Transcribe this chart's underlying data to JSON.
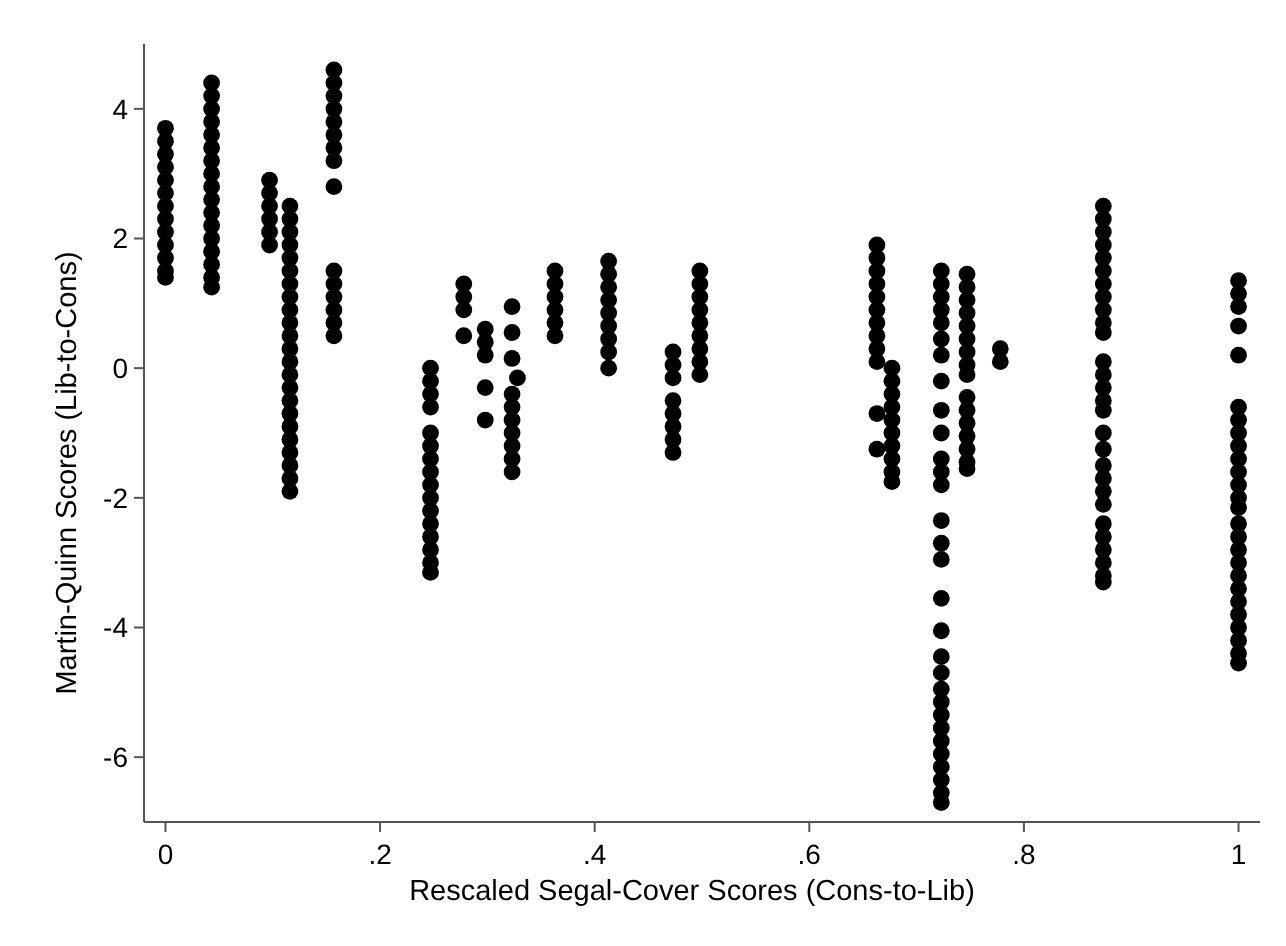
{
  "chart_data": {
    "type": "scatter",
    "xlabel": "Rescaled Segal-Cover Scores (Cons-to-Lib)",
    "ylabel": "Martin-Quinn Scores (Lib-to-Cons)",
    "xlim": [
      -0.02,
      1.02
    ],
    "ylim": [
      -7,
      5
    ],
    "xticks": [
      0,
      {
        "value": 0.2,
        "label": ".2"
      },
      {
        "value": 0.4,
        "label": ".4"
      },
      {
        "value": 0.6,
        "label": ".6"
      },
      {
        "value": 0.8,
        "label": ".8"
      },
      1
    ],
    "yticks": [
      -6,
      -4,
      -2,
      0,
      2,
      4
    ],
    "grid": false,
    "marker": "circle",
    "series": [
      {
        "color": "#000000",
        "x": [
          0,
          0,
          0,
          0,
          0,
          0,
          0,
          0,
          0,
          0,
          0,
          0,
          0,
          0.043,
          0.043,
          0.043,
          0.043,
          0.043,
          0.043,
          0.043,
          0.043,
          0.043,
          0.043,
          0.043,
          0.043,
          0.043,
          0.043,
          0.043,
          0.043,
          0.043,
          0.097,
          0.097,
          0.097,
          0.097,
          0.097,
          0.097,
          0.116,
          0.116,
          0.116,
          0.116,
          0.116,
          0.116,
          0.116,
          0.116,
          0.116,
          0.116,
          0.116,
          0.116,
          0.116,
          0.116,
          0.116,
          0.116,
          0.116,
          0.116,
          0.116,
          0.116,
          0.116,
          0.116,
          0.116,
          0.157,
          0.157,
          0.157,
          0.157,
          0.157,
          0.157,
          0.157,
          0.157,
          0.157,
          0.157,
          0.157,
          0.157,
          0.157,
          0.157,
          0.157,
          0.247,
          0.247,
          0.247,
          0.247,
          0.247,
          0.247,
          0.247,
          0.247,
          0.247,
          0.247,
          0.247,
          0.247,
          0.247,
          0.247,
          0.247,
          0.247,
          0.278,
          0.278,
          0.278,
          0.278,
          0.298,
          0.298,
          0.298,
          0.298,
          0.298,
          0.323,
          0.323,
          0.323,
          0.323,
          0.323,
          0.323,
          0.323,
          0.323,
          0.323,
          0.323,
          0.328,
          0.363,
          0.363,
          0.363,
          0.363,
          0.363,
          0.363,
          0.413,
          0.413,
          0.413,
          0.413,
          0.413,
          0.413,
          0.413,
          0.413,
          0.413,
          0.473,
          0.473,
          0.473,
          0.473,
          0.473,
          0.473,
          0.473,
          0.473,
          0.498,
          0.498,
          0.498,
          0.498,
          0.498,
          0.498,
          0.498,
          0.498,
          0.498,
          0.663,
          0.663,
          0.663,
          0.663,
          0.663,
          0.663,
          0.663,
          0.663,
          0.663,
          0.663,
          0.663,
          0.663,
          0.677,
          0.677,
          0.677,
          0.677,
          0.677,
          0.677,
          0.677,
          0.677,
          0.677,
          0.677,
          0.723,
          0.723,
          0.723,
          0.723,
          0.723,
          0.723,
          0.723,
          0.723,
          0.723,
          0.723,
          0.723,
          0.723,
          0.723,
          0.723,
          0.723,
          0.723,
          0.723,
          0.723,
          0.723,
          0.723,
          0.723,
          0.723,
          0.723,
          0.723,
          0.723,
          0.723,
          0.723,
          0.723,
          0.723,
          0.723,
          0.747,
          0.747,
          0.747,
          0.747,
          0.747,
          0.747,
          0.747,
          0.747,
          0.747,
          0.747,
          0.747,
          0.747,
          0.747,
          0.747,
          0.747,
          0.747,
          0.778,
          0.778,
          0.874,
          0.874,
          0.874,
          0.874,
          0.874,
          0.874,
          0.874,
          0.874,
          0.874,
          0.874,
          0.874,
          0.874,
          0.874,
          0.874,
          0.874,
          0.874,
          0.874,
          0.874,
          0.874,
          0.874,
          0.874,
          0.874,
          0.874,
          0.874,
          0.874,
          0.874,
          0.874,
          0.874,
          1,
          1,
          1,
          1,
          1,
          1,
          1,
          1,
          1,
          1,
          1,
          1,
          1,
          1,
          1,
          1,
          1,
          1,
          1,
          1,
          1,
          1,
          1,
          1,
          1,
          1
        ],
        "values": [
          3.7,
          3.5,
          3.3,
          3.1,
          2.9,
          2.7,
          2.5,
          2.3,
          2.1,
          1.9,
          1.7,
          1.5,
          1.4,
          4.4,
          4.2,
          4.0,
          3.8,
          3.6,
          3.4,
          3.2,
          3.0,
          2.8,
          2.6,
          2.4,
          2.2,
          2.0,
          1.8,
          1.6,
          1.4,
          1.25,
          2.9,
          2.7,
          2.5,
          2.3,
          2.1,
          1.9,
          2.5,
          2.3,
          2.1,
          1.9,
          1.7,
          1.5,
          1.3,
          1.1,
          0.9,
          0.7,
          0.5,
          0.3,
          0.1,
          -0.1,
          -0.3,
          -0.5,
          -0.7,
          -0.9,
          -1.1,
          -1.3,
          -1.5,
          -1.7,
          -1.9,
          4.6,
          4.4,
          4.2,
          4.0,
          3.8,
          3.6,
          3.4,
          3.2,
          2.8,
          1.5,
          1.3,
          1.1,
          0.9,
          0.7,
          0.5,
          0.0,
          -0.2,
          -0.4,
          -0.6,
          -1.0,
          -1.2,
          -1.4,
          -1.6,
          -1.8,
          -2.0,
          -2.2,
          -2.4,
          -2.6,
          -2.8,
          -3.0,
          -3.15,
          1.3,
          1.1,
          0.9,
          0.5,
          0.6,
          0.4,
          0.2,
          -0.3,
          -0.8,
          0.95,
          0.55,
          0.15,
          -0.4,
          -0.6,
          -0.8,
          -1.0,
          -1.2,
          -1.4,
          -1.6,
          -0.15,
          1.5,
          1.3,
          1.1,
          0.9,
          0.7,
          0.5,
          1.65,
          1.45,
          1.25,
          1.05,
          0.85,
          0.65,
          0.45,
          0.25,
          0.0,
          0.25,
          0.05,
          -0.15,
          -0.5,
          -0.7,
          -0.9,
          -1.1,
          -1.3,
          1.5,
          1.3,
          1.1,
          0.9,
          0.7,
          0.5,
          0.3,
          0.1,
          -0.1,
          1.9,
          1.7,
          1.5,
          1.3,
          1.1,
          0.9,
          0.7,
          0.5,
          0.3,
          0.1,
          -0.7,
          -1.25,
          0.0,
          -0.2,
          -0.4,
          -0.6,
          -0.8,
          -1.0,
          -1.2,
          -1.4,
          -1.6,
          -1.75,
          1.5,
          1.3,
          1.1,
          0.9,
          0.7,
          0.45,
          0.2,
          -0.2,
          -0.65,
          -1.0,
          -1.4,
          -1.6,
          -1.8,
          -2.35,
          -2.7,
          -2.95,
          -3.55,
          -4.05,
          -4.45,
          -4.7,
          -4.95,
          -5.15,
          -5.35,
          -5.55,
          -5.75,
          -5.95,
          -6.15,
          -6.35,
          -6.55,
          -6.7,
          1.45,
          1.25,
          1.05,
          0.85,
          0.65,
          0.45,
          0.25,
          0.05,
          -0.1,
          -0.45,
          -0.65,
          -0.85,
          -1.05,
          -1.25,
          -1.45,
          -1.55,
          0.3,
          0.1,
          2.5,
          2.3,
          2.1,
          1.9,
          1.7,
          1.5,
          1.3,
          1.1,
          0.9,
          0.7,
          0.55,
          0.1,
          -0.1,
          -0.3,
          -0.5,
          -0.65,
          -1.0,
          -1.25,
          -1.5,
          -1.7,
          -1.9,
          -2.1,
          -2.4,
          -2.6,
          -2.8,
          -3.0,
          -3.2,
          -3.3,
          1.35,
          1.15,
          0.95,
          0.65,
          0.2,
          -0.6,
          -0.8,
          -1.0,
          -1.2,
          -1.4,
          -1.6,
          -1.8,
          -2.0,
          -2.15,
          -2.4,
          -2.6,
          -2.8,
          -3.0,
          -3.2,
          -3.4,
          -3.6,
          -3.8,
          -4.0,
          -4.2,
          -4.4,
          -4.55
        ]
      }
    ]
  }
}
